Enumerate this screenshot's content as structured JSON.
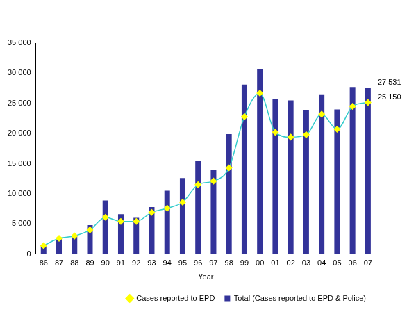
{
  "chart_data": {
    "type": "bar",
    "xlabel": "Year",
    "categories": [
      "86",
      "87",
      "88",
      "89",
      "90",
      "91",
      "92",
      "93",
      "94",
      "95",
      "96",
      "97",
      "98",
      "99",
      "00",
      "01",
      "02",
      "03",
      "04",
      "05",
      "06",
      "07"
    ],
    "series": [
      {
        "name": "Total (Cases reported to EPD & Police)",
        "type": "bar",
        "color": "#333399",
        "values": [
          1500,
          2700,
          3100,
          4800,
          8900,
          6600,
          6000,
          7800,
          10500,
          12600,
          15400,
          13900,
          19900,
          28100,
          30700,
          25700,
          25500,
          23900,
          26500,
          24000,
          27700,
          27531
        ]
      },
      {
        "name": "Cases reported to EPD",
        "type": "line",
        "color": "#33cccc",
        "marker": "diamond",
        "line_style": "solid",
        "values": [
          1400,
          2600,
          3000,
          4000,
          6100,
          5400,
          5400,
          6900,
          7600,
          8600,
          11500,
          12100,
          14300,
          22800,
          26700,
          20200,
          19400,
          19800,
          23200,
          20700,
          24500,
          25150
        ]
      }
    ],
    "annotations": [
      {
        "text": "27 531",
        "category": "07",
        "value": 27531
      },
      {
        "text": "25 150",
        "category": "07",
        "value": 25150
      }
    ],
    "ylim": [
      0,
      35000
    ],
    "yticks": [
      0,
      {
        "value": 5000,
        "label": "5 000"
      },
      {
        "value": 10000,
        "label": "10 000"
      },
      {
        "value": 15000,
        "label": "15 000"
      },
      {
        "value": 20000,
        "label": "20 000"
      },
      {
        "value": 25000,
        "label": "25 000"
      },
      {
        "value": 30000,
        "label": "30 000"
      },
      {
        "value": 35000,
        "label": "35 000"
      }
    ],
    "grid": false,
    "legend": "bottom"
  }
}
